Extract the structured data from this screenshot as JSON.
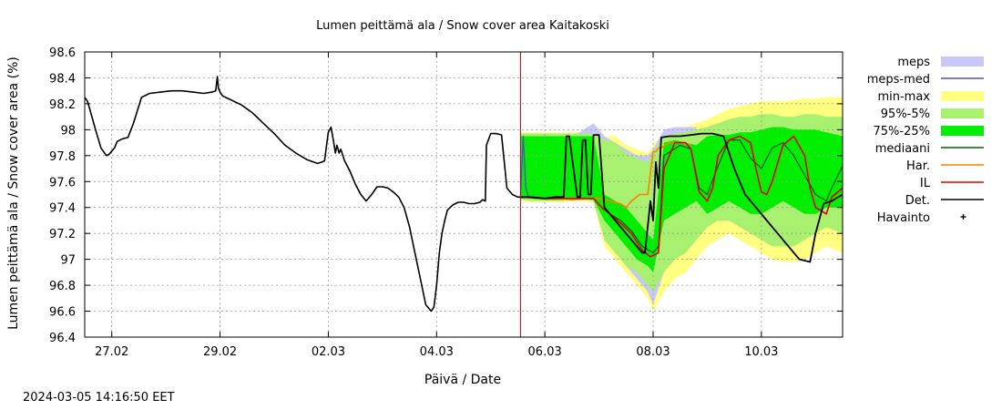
{
  "chart_data": {
    "type": "line",
    "title": "Lumen peittämä ala / Snow cover area Kaitakoski",
    "xlabel": "Päivä / Date",
    "ylabel": "Lumen peittämä ala / Snow cover area (%)",
    "x_unit": "days after 26.02 00:00",
    "xlim": [
      0.5,
      14.5
    ],
    "ylim": [
      96.4,
      98.6
    ],
    "yticks": [
      "96.4",
      "96.6",
      "96.8",
      "97",
      "97.2",
      "97.4",
      "97.6",
      "97.8",
      "98",
      "98.2",
      "98.4",
      "98.6"
    ],
    "xticks": [
      {
        "x": 1,
        "label": "27.02"
      },
      {
        "x": 3,
        "label": "29.02"
      },
      {
        "x": 5,
        "label": "02.03"
      },
      {
        "x": 7,
        "label": "04.03"
      },
      {
        "x": 9,
        "label": "06.03"
      },
      {
        "x": 11,
        "label": "08.03"
      },
      {
        "x": 13,
        "label": "10.03"
      }
    ],
    "grid": true,
    "forecast_start_x": 8.55,
    "colors": {
      "meps": "#c8c8f8",
      "meps_med": "#5050c0",
      "minmax": "#ffff80",
      "p95_5": "#a8f070",
      "p75_25": "#00ee00",
      "mediaani": "#006000",
      "har": "#ff8000",
      "il": "#e00000",
      "det": "#000000",
      "havainto": "#000000",
      "forecast_line": "#c00000"
    },
    "legend": [
      {
        "key": "meps",
        "label": "meps",
        "style": "band"
      },
      {
        "key": "meps_med",
        "label": "meps-med",
        "style": "line"
      },
      {
        "key": "minmax",
        "label": "min-max",
        "style": "band"
      },
      {
        "key": "p95_5",
        "label": "95%-5%",
        "style": "band"
      },
      {
        "key": "p75_25",
        "label": "75%-25%",
        "style": "band"
      },
      {
        "key": "mediaani",
        "label": "mediaani",
        "style": "line"
      },
      {
        "key": "har",
        "label": "Har.",
        "style": "line"
      },
      {
        "key": "il",
        "label": "IL",
        "style": "line"
      },
      {
        "key": "det",
        "label": "Det.",
        "style": "line"
      },
      {
        "key": "havainto",
        "label": "Havainto",
        "style": "point"
      }
    ],
    "series": {
      "history": {
        "name": "Det. (observed period)",
        "x": [
          0.5,
          0.55,
          0.6,
          0.7,
          0.8,
          0.9,
          0.95,
          1.05,
          1.1,
          1.2,
          1.3,
          1.4,
          1.55,
          1.7,
          1.9,
          2.1,
          2.3,
          2.5,
          2.7,
          2.85,
          2.92,
          2.95,
          2.97,
          3.0,
          3.05,
          3.2,
          3.4,
          3.6,
          3.8,
          4.0,
          4.2,
          4.4,
          4.6,
          4.8,
          4.88,
          4.93,
          5.0,
          5.05,
          5.1,
          5.13,
          5.16,
          5.2,
          5.23,
          5.3,
          5.4,
          5.5,
          5.6,
          5.7,
          5.8,
          5.9,
          6.0,
          6.1,
          6.2,
          6.3,
          6.4,
          6.5,
          6.6,
          6.7,
          6.8,
          6.9,
          6.95,
          7.0,
          7.05,
          7.1,
          7.15,
          7.2,
          7.3,
          7.4,
          7.5,
          7.6,
          7.7,
          7.8,
          7.85,
          7.9,
          7.92,
          8.0,
          8.1,
          8.2,
          8.3,
          8.4,
          8.5,
          8.55
        ],
        "y": [
          98.25,
          98.22,
          98.15,
          98.0,
          97.86,
          97.8,
          97.81,
          97.86,
          97.91,
          97.93,
          97.94,
          98.05,
          98.25,
          98.28,
          98.29,
          98.3,
          98.3,
          98.29,
          98.28,
          98.29,
          98.3,
          98.41,
          98.32,
          98.29,
          98.26,
          98.23,
          98.19,
          98.13,
          98.05,
          97.97,
          97.88,
          97.82,
          97.77,
          97.74,
          97.75,
          97.76,
          97.98,
          98.02,
          97.9,
          97.82,
          97.88,
          97.82,
          97.85,
          97.76,
          97.68,
          97.58,
          97.5,
          97.45,
          97.5,
          97.56,
          97.56,
          97.55,
          97.52,
          97.48,
          97.4,
          97.25,
          97.05,
          96.85,
          96.65,
          96.6,
          96.63,
          96.8,
          97.05,
          97.2,
          97.3,
          97.38,
          97.42,
          97.44,
          97.44,
          97.43,
          97.43,
          97.44,
          97.46,
          97.45,
          97.88,
          97.97,
          97.97,
          97.96,
          97.55,
          97.5,
          97.48,
          97.48
        ]
      },
      "det_forecast": {
        "name": "Det.",
        "x": [
          8.55,
          8.7,
          9.0,
          9.2,
          9.35,
          9.4,
          9.45,
          9.6,
          9.65,
          9.7,
          9.75,
          9.8,
          9.85,
          9.9,
          10.0,
          10.1,
          10.3,
          10.5,
          10.7,
          10.8,
          10.85,
          10.95,
          11.0,
          11.05,
          11.1,
          11.15,
          11.3,
          11.5,
          11.7,
          11.9,
          12.1,
          12.3,
          12.5,
          12.7,
          12.9,
          13.1,
          13.3,
          13.5,
          13.7,
          13.9,
          14.0,
          14.15,
          14.3,
          14.5
        ],
        "y": [
          97.48,
          97.48,
          97.47,
          97.48,
          97.48,
          97.95,
          97.95,
          97.48,
          97.48,
          97.92,
          97.92,
          97.5,
          97.5,
          97.96,
          97.96,
          97.4,
          97.3,
          97.2,
          97.1,
          97.05,
          97.05,
          97.45,
          97.3,
          97.75,
          97.55,
          97.94,
          97.95,
          97.95,
          97.96,
          97.97,
          97.97,
          97.95,
          97.7,
          97.5,
          97.4,
          97.3,
          97.2,
          97.1,
          97.0,
          96.98,
          97.2,
          97.43,
          97.45,
          97.5
        ]
      },
      "mediaani": {
        "name": "mediaani",
        "x": [
          8.55,
          8.7,
          9.0,
          9.2,
          9.35,
          9.5,
          9.7,
          9.9,
          10.05,
          10.2,
          10.4,
          10.6,
          10.8,
          11.0,
          11.1,
          11.2,
          11.5,
          11.7,
          11.85,
          12.0,
          12.2,
          12.4,
          12.6,
          12.8,
          13.0,
          13.2,
          13.4,
          13.6,
          13.8,
          14.0,
          14.2,
          14.3,
          14.5
        ],
        "y": [
          97.48,
          97.48,
          97.47,
          97.47,
          97.47,
          97.47,
          97.47,
          97.47,
          97.4,
          97.35,
          97.3,
          97.22,
          97.1,
          97.05,
          97.1,
          97.8,
          97.88,
          97.85,
          97.55,
          97.5,
          97.72,
          97.92,
          97.92,
          97.78,
          97.7,
          97.86,
          97.9,
          97.8,
          97.65,
          97.5,
          97.45,
          97.55,
          97.72
        ]
      },
      "il": {
        "name": "IL",
        "x": [
          8.55,
          8.7,
          9.0,
          9.2,
          9.35,
          9.5,
          9.7,
          9.9,
          10.05,
          10.2,
          10.4,
          10.6,
          10.8,
          10.95,
          11.1,
          11.2,
          11.4,
          11.6,
          11.7,
          11.85,
          12.0,
          12.1,
          12.2,
          12.4,
          12.6,
          12.8,
          12.9,
          13.0,
          13.1,
          13.2,
          13.4,
          13.6,
          13.8,
          13.9,
          14.0,
          14.2,
          14.3,
          14.5
        ],
        "y": [
          97.48,
          97.48,
          97.47,
          97.47,
          97.47,
          97.47,
          97.47,
          97.47,
          97.4,
          97.35,
          97.28,
          97.2,
          97.07,
          97.02,
          97.05,
          97.7,
          97.9,
          97.9,
          97.85,
          97.52,
          97.45,
          97.55,
          97.8,
          97.92,
          97.95,
          97.9,
          97.7,
          97.52,
          97.5,
          97.6,
          97.88,
          97.95,
          97.8,
          97.55,
          97.4,
          97.35,
          97.48,
          97.55
        ]
      },
      "har": {
        "name": "Har.",
        "x": [
          8.55,
          8.7,
          9.0,
          9.3,
          9.5,
          9.8,
          10.0,
          10.2,
          10.4,
          10.5,
          10.6,
          10.75,
          10.9,
          11.0,
          11.05,
          11.1,
          11.15,
          11.3,
          11.5,
          11.7
        ],
        "y": [
          97.48,
          97.48,
          97.47,
          97.47,
          97.46,
          97.47,
          97.47,
          97.45,
          97.43,
          97.4,
          97.45,
          97.5,
          97.5,
          97.83,
          97.83,
          97.86,
          97.86,
          97.9,
          97.9,
          97.88
        ]
      },
      "meps_med": {
        "name": "meps-med",
        "x": [
          8.55,
          8.6,
          8.65,
          8.7,
          8.8,
          9.0
        ],
        "y": [
          97.48,
          97.95,
          97.55,
          97.48,
          97.48,
          97.47
        ]
      },
      "band_minmax": {
        "name": "min-max",
        "x": [
          8.55,
          8.7,
          9.0,
          9.3,
          9.6,
          9.9,
          10.1,
          10.3,
          10.5,
          10.7,
          10.9,
          11.0,
          11.2,
          11.4,
          11.6,
          11.8,
          12.0,
          12.2,
          12.4,
          12.6,
          12.8,
          13.0,
          13.2,
          13.4,
          13.6,
          13.8,
          14.0,
          14.2,
          14.5
        ],
        "upper": [
          97.98,
          97.98,
          97.98,
          97.98,
          97.98,
          97.98,
          97.95,
          97.95,
          97.88,
          97.85,
          97.82,
          97.88,
          97.98,
          98.0,
          98.02,
          98.05,
          98.08,
          98.12,
          98.16,
          98.18,
          98.2,
          98.22,
          98.22,
          98.22,
          98.23,
          98.24,
          98.24,
          98.25,
          98.25
        ],
        "lower": [
          97.45,
          97.44,
          97.44,
          97.44,
          97.45,
          97.44,
          97.1,
          97.0,
          96.9,
          96.8,
          96.7,
          96.6,
          96.75,
          96.85,
          96.9,
          97.0,
          97.1,
          97.15,
          97.2,
          97.15,
          97.1,
          97.05,
          97.0,
          96.98,
          96.98,
          97.0,
          97.05,
          97.1,
          97.05
        ]
      },
      "band_p95_5": {
        "name": "95%-5%",
        "x": [
          8.55,
          8.7,
          9.0,
          9.3,
          9.6,
          9.9,
          10.1,
          10.3,
          10.5,
          10.7,
          10.9,
          11.0,
          11.2,
          11.4,
          11.6,
          11.8,
          12.0,
          12.2,
          12.4,
          12.6,
          12.8,
          13.0,
          13.2,
          13.4,
          13.6,
          13.8,
          14.0,
          14.2,
          14.5
        ],
        "upper": [
          97.97,
          97.97,
          97.97,
          97.97,
          97.97,
          97.97,
          97.92,
          97.9,
          97.82,
          97.78,
          97.75,
          97.82,
          97.95,
          97.97,
          97.98,
          98.0,
          98.02,
          98.05,
          98.08,
          98.1,
          98.1,
          98.12,
          98.12,
          98.1,
          98.1,
          98.12,
          98.12,
          98.1,
          98.1
        ],
        "lower": [
          97.47,
          97.45,
          97.45,
          97.45,
          97.46,
          97.45,
          97.15,
          97.05,
          96.95,
          96.9,
          96.8,
          96.75,
          96.9,
          97.0,
          97.05,
          97.15,
          97.25,
          97.3,
          97.3,
          97.25,
          97.2,
          97.15,
          97.1,
          97.1,
          97.1,
          97.15,
          97.2,
          97.25,
          97.2
        ]
      },
      "band_p75_25": {
        "name": "75%-25%",
        "x": [
          8.55,
          8.7,
          9.0,
          9.3,
          9.6,
          9.9,
          10.1,
          10.3,
          10.5,
          10.7,
          10.9,
          11.0,
          11.2,
          11.4,
          11.6,
          11.8,
          12.0,
          12.2,
          12.4,
          12.6,
          12.8,
          13.0,
          13.2,
          13.4,
          13.6,
          13.8,
          14.0,
          14.2,
          14.5
        ],
        "upper": [
          97.95,
          97.95,
          97.95,
          97.95,
          97.95,
          97.95,
          97.5,
          97.45,
          97.4,
          97.3,
          97.2,
          97.15,
          97.9,
          97.92,
          97.9,
          97.88,
          97.95,
          97.96,
          97.96,
          97.98,
          97.98,
          98.0,
          98.02,
          98.02,
          98.0,
          98.0,
          98.0,
          97.98,
          97.95
        ],
        "lower": [
          97.47,
          97.47,
          97.46,
          97.46,
          97.47,
          97.46,
          97.3,
          97.2,
          97.1,
          97.0,
          96.95,
          96.9,
          97.3,
          97.35,
          97.4,
          97.45,
          97.35,
          97.4,
          97.45,
          97.4,
          97.35,
          97.35,
          97.4,
          97.45,
          97.4,
          97.35,
          97.35,
          97.4,
          97.4
        ]
      },
      "band_meps": {
        "name": "meps",
        "x": [
          8.55,
          8.7,
          9.0,
          9.3,
          9.6,
          9.9,
          10.1,
          10.3,
          10.5,
          10.7,
          10.9,
          11.0,
          11.2,
          11.4,
          11.6,
          11.8
        ],
        "upper": [
          97.97,
          97.97,
          97.97,
          97.97,
          97.97,
          98.05,
          97.95,
          97.9,
          97.85,
          97.8,
          97.8,
          97.85,
          98.0,
          98.02,
          98.02,
          98.02
        ],
        "lower": [
          97.46,
          97.46,
          97.46,
          97.46,
          97.46,
          97.45,
          97.2,
          97.05,
          96.95,
          96.85,
          96.75,
          96.65,
          96.9,
          97.0,
          97.1,
          97.2
        ]
      }
    },
    "footer": "2024-03-05 14:16:50 EET"
  }
}
